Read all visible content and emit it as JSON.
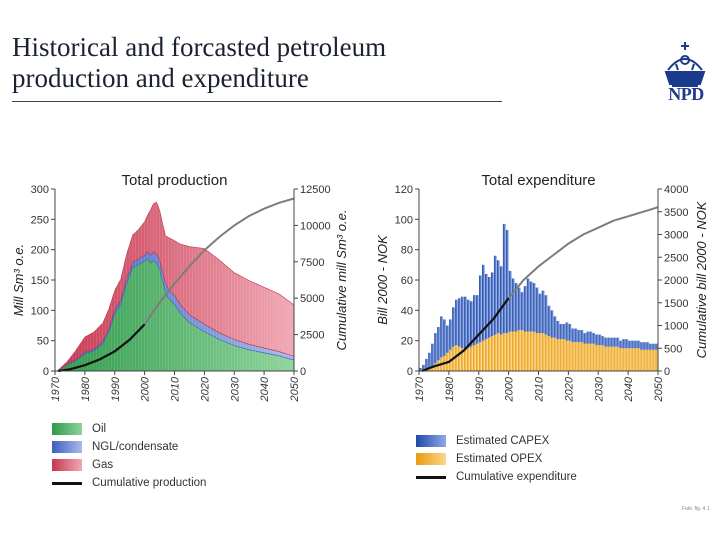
{
  "slide": {
    "title": "Historical and forcasted petroleum production and expenditure",
    "logo_text": "NPD",
    "footnote": "Fakt. fig. 4.1",
    "accent": "#1a3a8c"
  },
  "legend_production": [
    {
      "label": "Oil",
      "color": "#3aa655"
    },
    {
      "label": "NGL/condensate",
      "color": "#5b7bd0"
    },
    {
      "label": "Gas",
      "color": "#d24b62"
    },
    {
      "label": "Cumulative production",
      "color": "#111111"
    }
  ],
  "legend_expenditure": [
    {
      "label": "Estimated CAPEX",
      "color": "#2d5bbf"
    },
    {
      "label": "Estimated OPEX",
      "color": "#f0a81e"
    },
    {
      "label": "Cumulative expenditure",
      "color": "#111111"
    }
  ],
  "chart_data": [
    {
      "type": "area",
      "title": "Total production",
      "ylabel": "Mill Sm³ o.e.",
      "y2label": "Cumulative mill Sm³ o.e.",
      "xlim": [
        1970,
        2050
      ],
      "ylim": [
        0,
        300
      ],
      "y2lim": [
        0,
        12500
      ],
      "xticks": [
        "1970",
        "1980",
        "1990",
        "2000",
        "2010",
        "2020",
        "2030",
        "2040",
        "2050"
      ],
      "yticks": [
        "0",
        "50",
        "100",
        "150",
        "200",
        "250",
        "300"
      ],
      "y2ticks": [
        "0",
        "2500",
        "5000",
        "7500",
        "10000",
        "12500"
      ],
      "x": [
        1971,
        1974,
        1977,
        1980,
        1983,
        1986,
        1988,
        1990,
        1992,
        1994,
        1996,
        1998,
        2000,
        2001,
        2002,
        2003,
        2004,
        2005,
        2006,
        2007,
        2008,
        2010,
        2012,
        2015,
        2020,
        2025,
        2030,
        2035,
        2040,
        2045,
        2050
      ],
      "series": [
        {
          "name": "Oil",
          "values": [
            1,
            10,
            17,
            28,
            33,
            45,
            65,
            95,
            110,
            145,
            170,
            175,
            181,
            185,
            178,
            182,
            178,
            168,
            148,
            130,
            120,
            110,
            95,
            80,
            65,
            52,
            42,
            35,
            30,
            25,
            18
          ]
        },
        {
          "name": "NGL/condensate",
          "values": [
            0,
            1,
            2,
            3,
            3,
            4,
            5,
            6,
            7,
            8,
            9,
            10,
            10,
            12,
            13,
            14,
            15,
            15,
            15,
            15,
            15,
            15,
            14,
            13,
            12,
            11,
            10,
            9,
            8,
            7,
            6
          ]
        },
        {
          "name": "Gas",
          "values": [
            0,
            4,
            15,
            25,
            28,
            30,
            32,
            32,
            34,
            40,
            45,
            48,
            55,
            60,
            75,
            80,
            85,
            82,
            80,
            78,
            85,
            90,
            100,
            112,
            125,
            120,
            110,
            105,
            100,
            95,
            85
          ]
        }
      ],
      "cumulative": {
        "name": "Cumulative production",
        "x": [
          1971,
          1975,
          1980,
          1985,
          1990,
          1995,
          2000,
          2005,
          2010,
          2015,
          2020,
          2025,
          2030,
          2035,
          2040,
          2045,
          2050
        ],
        "values": [
          0,
          120,
          400,
          800,
          1350,
          2150,
          3200,
          4700,
          6000,
          7200,
          8300,
          9200,
          10000,
          10650,
          11150,
          11550,
          11850
        ]
      },
      "grid": false,
      "legend": "bottom"
    },
    {
      "type": "bar",
      "title": "Total expenditure",
      "ylabel": "Bill 2000 - NOK",
      "y2label": "Cumulative bill 2000 - NOK",
      "xlim": [
        1970,
        2050
      ],
      "ylim": [
        0,
        120
      ],
      "y2lim": [
        0,
        4000
      ],
      "xticks": [
        "1970",
        "1980",
        "1990",
        "2000",
        "2010",
        "2020",
        "2030",
        "2040",
        "2050"
      ],
      "yticks": [
        "0",
        "20",
        "40",
        "60",
        "80",
        "100",
        "120"
      ],
      "y2ticks": [
        "0",
        "500",
        "1000",
        "1500",
        "2000",
        "2500",
        "3000",
        "3500",
        "4000"
      ],
      "x": [
        1971,
        1972,
        1973,
        1974,
        1975,
        1976,
        1977,
        1978,
        1979,
        1980,
        1981,
        1982,
        1983,
        1984,
        1985,
        1986,
        1987,
        1988,
        1989,
        1990,
        1991,
        1992,
        1993,
        1994,
        1995,
        1996,
        1997,
        1998,
        1999,
        2000,
        2001,
        2002,
        2003,
        2004,
        2005,
        2006,
        2007,
        2008,
        2009,
        2010,
        2011,
        2012,
        2013,
        2014,
        2015,
        2016,
        2017,
        2018,
        2019,
        2020,
        2021,
        2022,
        2023,
        2024,
        2025,
        2026,
        2027,
        2028,
        2029,
        2030,
        2031,
        2032,
        2033,
        2034,
        2035,
        2036,
        2037,
        2038,
        2039,
        2040,
        2041,
        2042,
        2043,
        2044,
        2045,
        2046,
        2047,
        2048,
        2049,
        2050
      ],
      "series": [
        {
          "name": "Estimated CAPEX",
          "values": [
            2,
            4,
            7,
            10,
            15,
            20,
            22,
            27,
            24,
            18,
            20,
            26,
            30,
            32,
            34,
            35,
            32,
            30,
            33,
            32,
            44,
            50,
            43,
            40,
            42,
            52,
            48,
            45,
            72,
            68,
            40,
            35,
            32,
            28,
            25,
            30,
            35,
            33,
            32,
            30,
            26,
            28,
            26,
            20,
            18,
            14,
            12,
            10,
            10,
            12,
            11,
            9,
            9,
            8,
            8,
            7,
            8,
            8,
            7,
            7,
            7,
            6,
            6,
            6,
            6,
            6,
            6,
            5,
            6,
            6,
            5,
            5,
            5,
            5,
            5,
            5,
            5,
            4,
            4,
            4
          ]
        },
        {
          "name": "Estimated OPEX",
          "values": [
            0,
            0,
            1,
            2,
            3,
            5,
            7,
            9,
            10,
            12,
            14,
            16,
            17,
            16,
            15,
            14,
            15,
            16,
            17,
            18,
            19,
            20,
            21,
            22,
            23,
            24,
            25,
            24,
            25,
            25,
            26,
            26,
            26,
            27,
            27,
            26,
            26,
            26,
            26,
            25,
            25,
            25,
            24,
            23,
            22,
            22,
            21,
            21,
            21,
            20,
            20,
            19,
            19,
            19,
            19,
            18,
            18,
            18,
            18,
            17,
            17,
            17,
            16,
            16,
            16,
            16,
            16,
            15,
            15,
            15,
            15,
            15,
            15,
            15,
            14,
            14,
            14,
            14,
            14,
            14
          ]
        }
      ],
      "cumulative": {
        "name": "Cumulative expenditure",
        "x": [
          1971,
          1975,
          1980,
          1985,
          1990,
          1995,
          2000,
          2005,
          2010,
          2015,
          2020,
          2025,
          2030,
          2035,
          2040,
          2045,
          2050
        ],
        "values": [
          0,
          100,
          200,
          450,
          800,
          1150,
          1600,
          2000,
          2300,
          2550,
          2800,
          3000,
          3150,
          3300,
          3400,
          3500,
          3600
        ]
      },
      "grid": false,
      "legend": "bottom"
    }
  ]
}
